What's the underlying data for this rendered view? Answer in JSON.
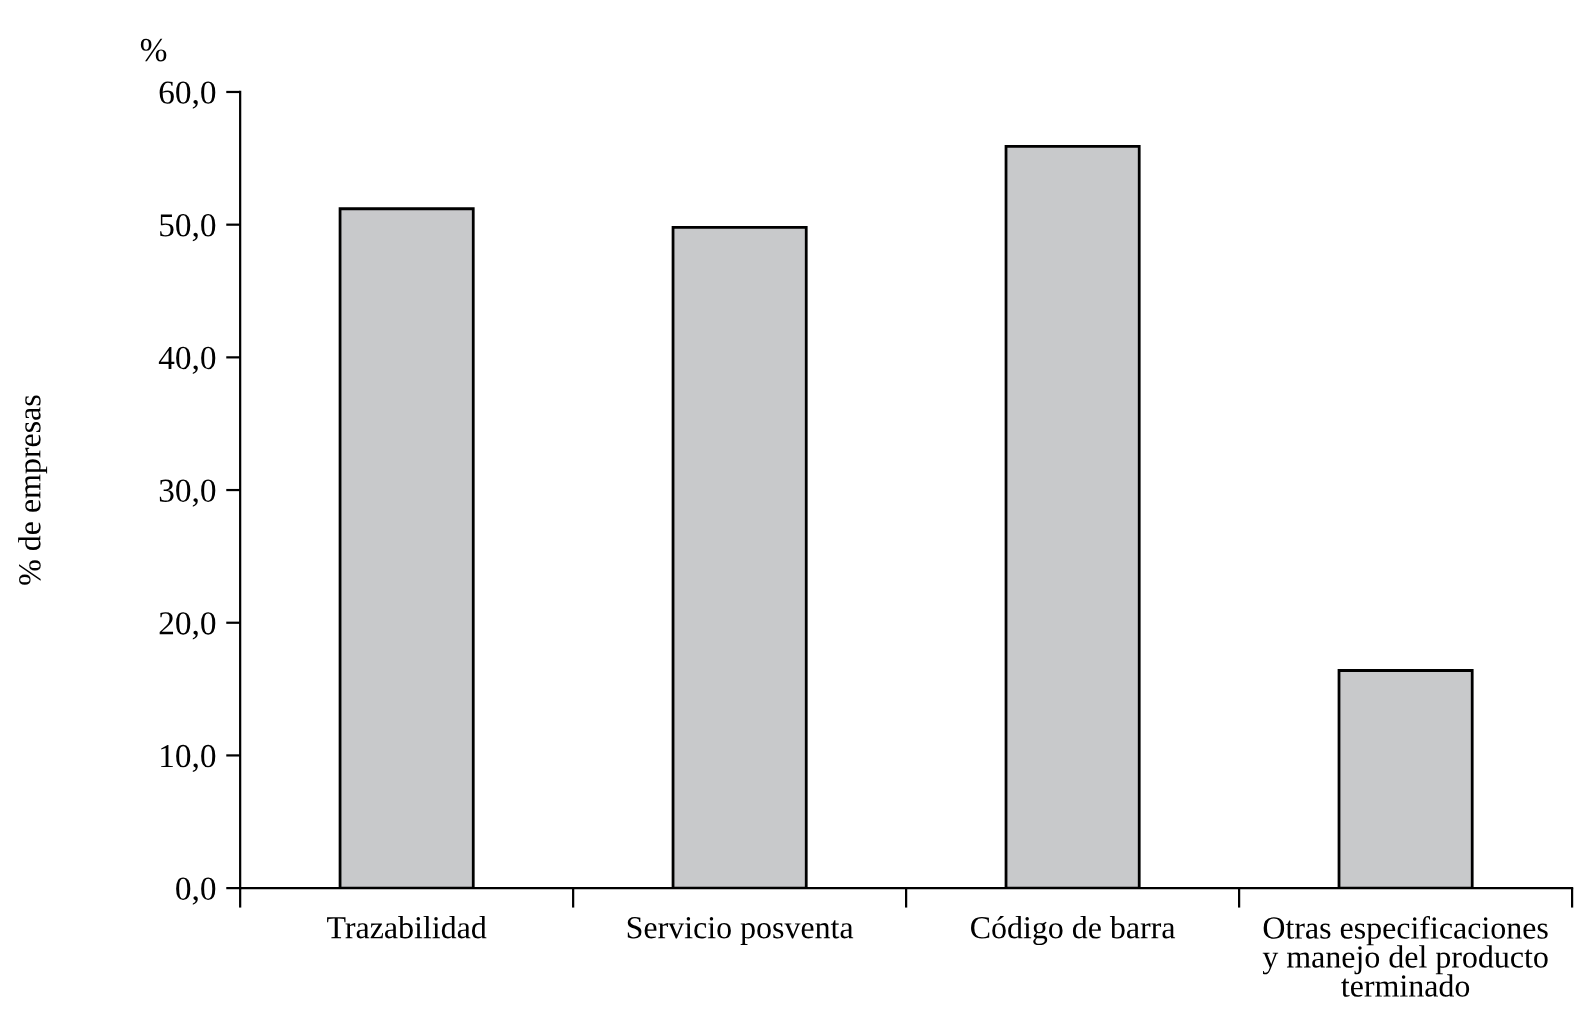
{
  "chart_data": {
    "type": "bar",
    "ylabel": "% de empresas",
    "annotations": [
      "%"
    ],
    "categories": [
      "Trazabilidad",
      "Servicio posventa",
      "Código de barra",
      "Otras especificaciones\ny manejo del producto\nterminado"
    ],
    "values": [
      51.2,
      49.8,
      55.9,
      16.4
    ],
    "color": "#c8c9cb",
    "ylim": [
      0,
      60
    ],
    "yticks": [
      {
        "value": 0,
        "label": "0,0"
      },
      {
        "value": 10,
        "label": "10,0"
      },
      {
        "value": 20,
        "label": "20,0"
      },
      {
        "value": 30,
        "label": "30,0"
      },
      {
        "value": 40,
        "label": "40,0"
      },
      {
        "value": 50,
        "label": "50,0"
      },
      {
        "value": 60,
        "label": "60,0"
      }
    ],
    "grid": false,
    "legend": false
  }
}
